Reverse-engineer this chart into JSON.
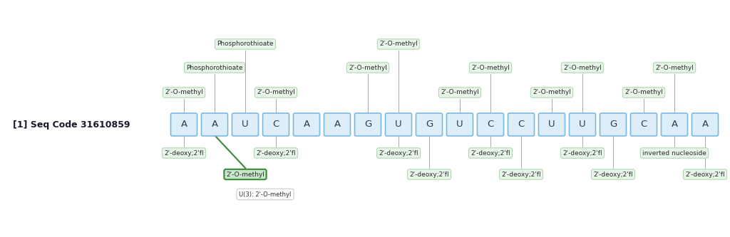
{
  "seq_label": "[1] Seq Code 31610859",
  "nucleotides": [
    "A",
    "A",
    "U",
    "C",
    "A",
    "A",
    "G",
    "U",
    "G",
    "U",
    "C",
    "C",
    "U",
    "U",
    "G",
    "C",
    "A",
    "A"
  ],
  "box_fill": "#ddeef8",
  "box_edge": "#7ab8e0",
  "box_edge_width": 1.2,
  "nt_fontsize": 9.5,
  "nt_color": "#2c3e50",
  "label_fontsize": 6.5,
  "label_bg": "#e8f5e9",
  "label_edge": "#b2d8b2",
  "seq_label_fontsize": 9,
  "seq_label_color": "#1a1a2e",
  "background_color": "#ffffff",
  "annotations_above": [
    {
      "text": "2'-O-methyl",
      "nt_idx": 0,
      "level": 1
    },
    {
      "text": "Phosphorothioate",
      "nt_idx": 1,
      "level": 2
    },
    {
      "text": "Phosphorothioate",
      "nt_idx": 2,
      "level": 3
    },
    {
      "text": "2'-O-methyl",
      "nt_idx": 3,
      "level": 1
    },
    {
      "text": "2'-O-methyl",
      "nt_idx": 6,
      "level": 2
    },
    {
      "text": "2'-O-methyl",
      "nt_idx": 7,
      "level": 3
    },
    {
      "text": "2'-O-methyl",
      "nt_idx": 9,
      "level": 1
    },
    {
      "text": "2'-O-methyl",
      "nt_idx": 10,
      "level": 2
    },
    {
      "text": "2'-O-methyl",
      "nt_idx": 12,
      "level": 1
    },
    {
      "text": "2'-O-methyl",
      "nt_idx": 13,
      "level": 2
    },
    {
      "text": "2'-O-methyl",
      "nt_idx": 15,
      "level": 1
    },
    {
      "text": "2'-O-methyl",
      "nt_idx": 16,
      "level": 2
    }
  ],
  "annotations_below": [
    {
      "text": "2'-deoxy;2'fl",
      "nt_idx": 0,
      "level": 1
    },
    {
      "text": "2'-deoxy;2'fl",
      "nt_idx": 3,
      "level": 1
    },
    {
      "text": "2'-O-methyl",
      "nt_idx": 2,
      "level": 2,
      "green": true
    },
    {
      "text": "2'-deoxy;2'fl",
      "nt_idx": 7,
      "level": 1
    },
    {
      "text": "2'-deoxy;2'fl",
      "nt_idx": 8,
      "level": 2
    },
    {
      "text": "2'-deoxy;2'fl",
      "nt_idx": 10,
      "level": 1
    },
    {
      "text": "2'-deoxy;2'fl",
      "nt_idx": 11,
      "level": 2
    },
    {
      "text": "2'-deoxy;2'fl",
      "nt_idx": 13,
      "level": 1
    },
    {
      "text": "2'-deoxy;2'fl",
      "nt_idx": 14,
      "level": 2
    },
    {
      "text": "inverted nucleoside",
      "nt_idx": 16,
      "level": 1
    },
    {
      "text": "2'-deoxy;2'fl",
      "nt_idx": 17,
      "level": 2
    }
  ],
  "tooltip_text": "U(3): 2'-O-methyl",
  "green_label_bg": "#c8e6c9",
  "green_label_edge": "#3a8a3a",
  "green_line_from_nt": 1,
  "green_line_to_nt": 2
}
